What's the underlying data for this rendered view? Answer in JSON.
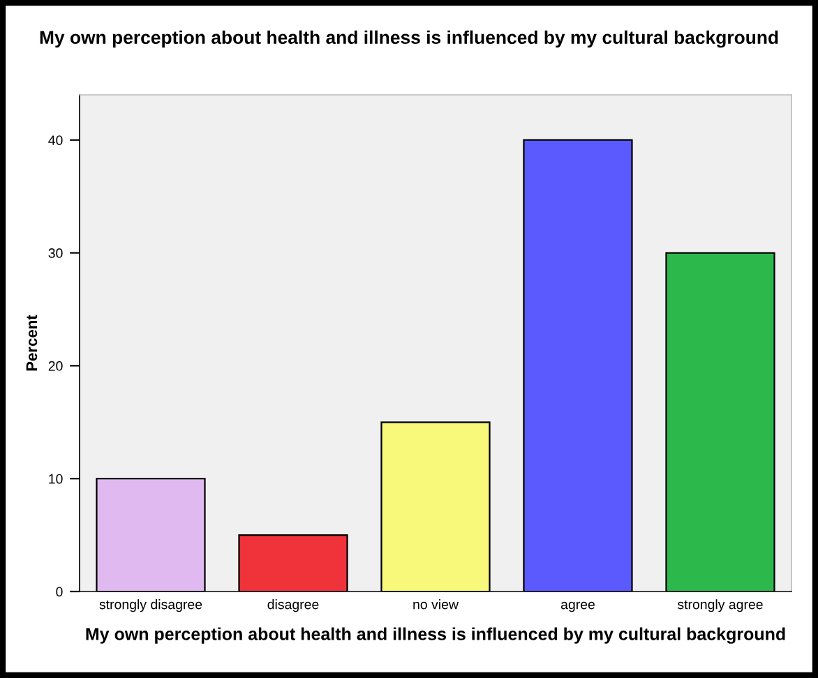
{
  "chart_data": {
    "type": "bar",
    "title": "My own perception about health and illness is influenced by my cultural background",
    "xlabel": "My own perception about health and illness is influenced by my cultural background",
    "ylabel": "Percent",
    "categories": [
      "strongly disagree",
      "disagree",
      "no view",
      "agree",
      "strongly agree"
    ],
    "values": [
      10,
      5,
      15,
      40,
      30
    ],
    "colors": [
      "#dfb9ef",
      "#f0323a",
      "#f8f87a",
      "#5a5aff",
      "#2db84b"
    ],
    "ylim": [
      0,
      44
    ],
    "yticks": [
      0,
      10,
      20,
      30,
      40
    ],
    "grid": false
  }
}
